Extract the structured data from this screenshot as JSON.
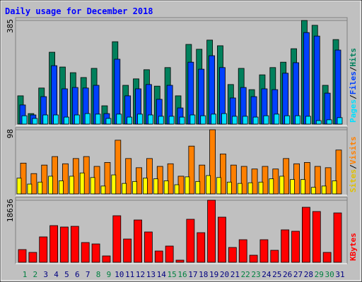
{
  "chart_data": [
    {
      "type": "bar",
      "title": "Daily usage for December 2018",
      "ylim": [
        0,
        385
      ],
      "yticks": [
        385
      ],
      "legend_separator": "/",
      "series": [
        {
          "name": "Hits",
          "color": "#00805c",
          "values": [
            105,
            39,
            134,
            267,
            212,
            191,
            173,
            207,
            68,
            306,
            144,
            168,
            202,
            141,
            210,
            105,
            296,
            278,
            312,
            291,
            147,
            207,
            128,
            183,
            210,
            230,
            280,
            385,
            367,
            144,
            314
          ]
        },
        {
          "name": "Files",
          "color": "#0040ff",
          "values": [
            71,
            34,
            102,
            217,
            131,
            136,
            134,
            144,
            39,
            241,
            105,
            131,
            147,
            92,
            144,
            60,
            230,
            204,
            254,
            210,
            97,
            136,
            102,
            131,
            128,
            189,
            228,
            340,
            327,
            115,
            275
          ]
        },
        {
          "name": "Pages",
          "color": "#00e0ff",
          "values": [
            31,
            21,
            34,
            34,
            26,
            34,
            39,
            37,
            21,
            37,
            26,
            37,
            34,
            29,
            29,
            26,
            34,
            31,
            37,
            39,
            29,
            29,
            26,
            31,
            37,
            31,
            31,
            29,
            13,
            16,
            24
          ]
        }
      ]
    },
    {
      "type": "bar",
      "ylim": [
        0,
        98
      ],
      "yticks": [
        98
      ],
      "legend_separator": "/",
      "series": [
        {
          "name": "Visits",
          "color": "#ff8000",
          "values": [
            47,
            31,
            44,
            57,
            46,
            54,
            57,
            42,
            48,
            82,
            54,
            40,
            54,
            42,
            46,
            27,
            73,
            44,
            98,
            61,
            44,
            42,
            38,
            42,
            38,
            54,
            46,
            48,
            42,
            40,
            67
          ]
        },
        {
          "name": "Sites",
          "color": "#ffff00",
          "values": [
            24,
            15,
            18,
            27,
            20,
            27,
            32,
            25,
            12,
            29,
            16,
            19,
            24,
            23,
            20,
            14,
            26,
            19,
            28,
            25,
            18,
            16,
            17,
            18,
            23,
            27,
            22,
            22,
            10,
            12,
            20
          ]
        }
      ]
    },
    {
      "type": "bar",
      "ylim": [
        0,
        18636
      ],
      "yticks": [
        18636
      ],
      "categories": [
        "1",
        "2",
        "3",
        "4",
        "5",
        "6",
        "7",
        "8",
        "9",
        "10",
        "11",
        "12",
        "13",
        "14",
        "15",
        "16",
        "17",
        "18",
        "19",
        "20",
        "21",
        "22",
        "23",
        "24",
        "25",
        "26",
        "27",
        "28",
        "29",
        "30",
        "31"
      ],
      "category_colors": [
        "#008040",
        "#008040",
        "#000080",
        "#000080",
        "#000080",
        "#000080",
        "#000080",
        "#008040",
        "#008040",
        "#000080",
        "#000080",
        "#000080",
        "#000080",
        "#000080",
        "#008040",
        "#008040",
        "#000080",
        "#000080",
        "#000080",
        "#000080",
        "#000080",
        "#008040",
        "#008040",
        "#000080",
        "#000080",
        "#000080",
        "#000080",
        "#000080",
        "#008040",
        "#008040",
        "#000080"
      ],
      "series": [
        {
          "name": "KBytes",
          "color": "#ff0000",
          "values": [
            3812,
            2965,
            7624,
            11012,
            10589,
            10800,
            5930,
            5506,
            1906,
            13978,
            6988,
            12707,
            9106,
            3388,
            4871,
            635,
            12918,
            8894,
            18636,
            13554,
            4447,
            6777,
            2118,
            6777,
            3600,
            9742,
            9318,
            16518,
            15247,
            2965,
            14824
          ]
        }
      ]
    }
  ]
}
